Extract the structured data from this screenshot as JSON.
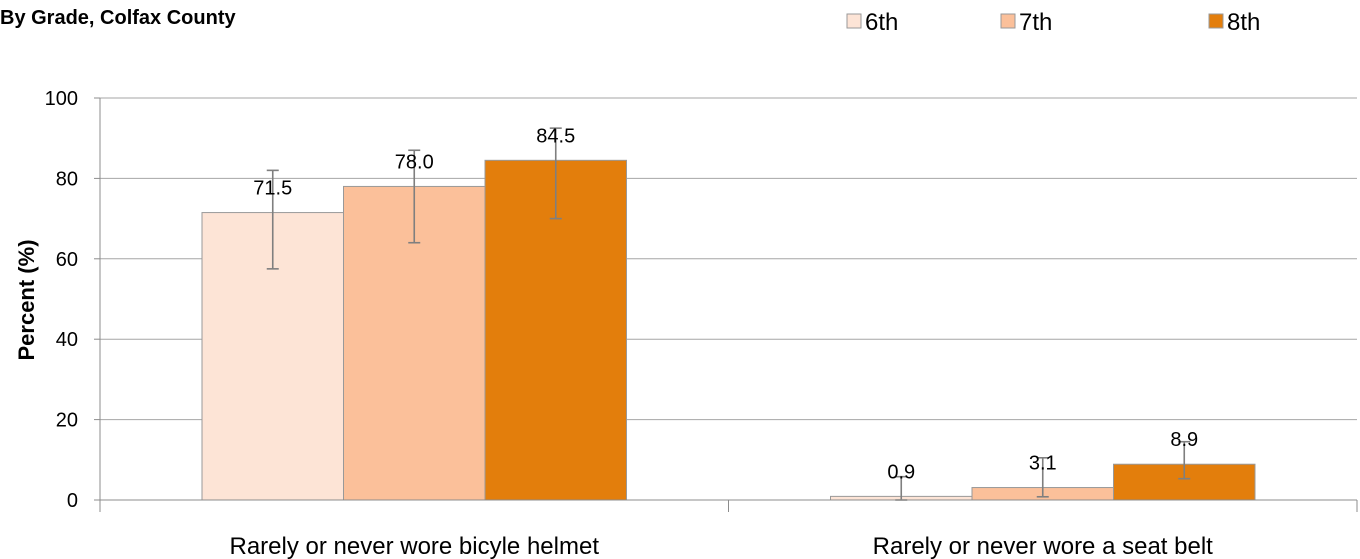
{
  "chart_data": {
    "type": "bar",
    "title": "By Grade, Colfax County",
    "ylabel": "Percent (%)",
    "xlabel": "",
    "ylim": [
      0,
      100
    ],
    "yticks": [
      0,
      20,
      40,
      60,
      80,
      100
    ],
    "grid": true,
    "legend_position": "top-right",
    "categories": [
      "Rarely or never wore bicyle helmet",
      "Rarely or never wore a seat belt"
    ],
    "series": [
      {
        "name": "6th",
        "color": "#fde4d6",
        "values": [
          71.5,
          0.9
        ],
        "labels": [
          "71.5",
          "0.9"
        ],
        "err_low": [
          57.5,
          0.0
        ],
        "err_high": [
          82.0,
          5.8
        ]
      },
      {
        "name": "7th",
        "color": "#fbc09a",
        "values": [
          78.0,
          3.1
        ],
        "labels": [
          "78.0",
          "3.1"
        ],
        "err_low": [
          64.0,
          0.8
        ],
        "err_high": [
          87.0,
          10.5
        ]
      },
      {
        "name": "8th",
        "color": "#e37e0c",
        "values": [
          84.5,
          8.9
        ],
        "labels": [
          "84.5",
          "8.9"
        ],
        "err_low": [
          70.0,
          5.3
        ],
        "err_high": [
          92.5,
          14.5
        ]
      }
    ]
  }
}
